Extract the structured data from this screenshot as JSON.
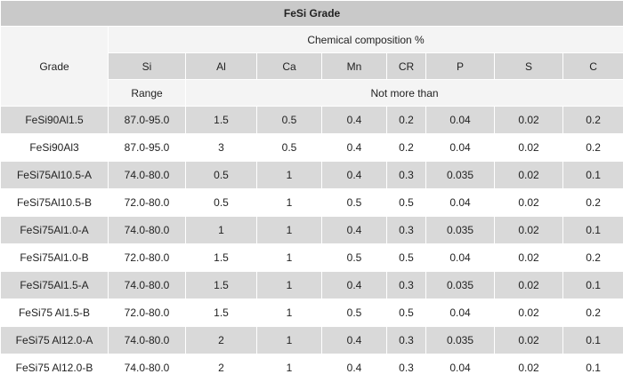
{
  "title": "FeSi Grade",
  "header": {
    "grade_label": "Grade",
    "composition_label": "Chemical composition %",
    "elements": [
      "Si",
      "Al",
      "Ca",
      "Mn",
      "CR",
      "P",
      "S",
      "C"
    ],
    "range_label": "Range",
    "max_label": "Not more than"
  },
  "rows": [
    {
      "grade": "FeSi90Al1.5",
      "si": "87.0-95.0",
      "al": "1.5",
      "ca": "0.5",
      "mn": "0.4",
      "cr": "0.2",
      "p": "0.04",
      "s": "0.02",
      "c": "0.2"
    },
    {
      "grade": "FeSi90Al3",
      "si": "87.0-95.0",
      "al": "3",
      "ca": "0.5",
      "mn": "0.4",
      "cr": "0.2",
      "p": "0.04",
      "s": "0.02",
      "c": "0.2"
    },
    {
      "grade": "FeSi75Al10.5-A",
      "si": "74.0-80.0",
      "al": "0.5",
      "ca": "1",
      "mn": "0.4",
      "cr": "0.3",
      "p": "0.035",
      "s": "0.02",
      "c": "0.1"
    },
    {
      "grade": "FeSi75Al10.5-B",
      "si": "72.0-80.0",
      "al": "0.5",
      "ca": "1",
      "mn": "0.5",
      "cr": "0.5",
      "p": "0.04",
      "s": "0.02",
      "c": "0.2"
    },
    {
      "grade": "FeSi75Al1.0-A",
      "si": "74.0-80.0",
      "al": "1",
      "ca": "1",
      "mn": "0.4",
      "cr": "0.3",
      "p": "0.035",
      "s": "0.02",
      "c": "0.1"
    },
    {
      "grade": "FeSi75Al1.0-B",
      "si": "72.0-80.0",
      "al": "1.5",
      "ca": "1",
      "mn": "0.5",
      "cr": "0.5",
      "p": "0.04",
      "s": "0.02",
      "c": "0.2"
    },
    {
      "grade": "FeSi75Al1.5-A",
      "si": "74.0-80.0",
      "al": "1.5",
      "ca": "1",
      "mn": "0.4",
      "cr": "0.3",
      "p": "0.035",
      "s": "0.02",
      "c": "0.1"
    },
    {
      "grade": "FeSi75 Al1.5-B",
      "si": "72.0-80.0",
      "al": "1.5",
      "ca": "1",
      "mn": "0.5",
      "cr": "0.5",
      "p": "0.04",
      "s": "0.02",
      "c": "0.2"
    },
    {
      "grade": "FeSi75 Al12.0-A",
      "si": "74.0-80.0",
      "al": "2",
      "ca": "1",
      "mn": "0.4",
      "cr": "0.3",
      "p": "0.035",
      "s": "0.02",
      "c": "0.1"
    },
    {
      "grade": "FeSi75 Al12.0-B",
      "si": "74.0-80.0",
      "al": "2",
      "ca": "1",
      "mn": "0.4",
      "cr": "0.3",
      "p": "0.04",
      "s": "0.02",
      "c": "0.1"
    }
  ]
}
